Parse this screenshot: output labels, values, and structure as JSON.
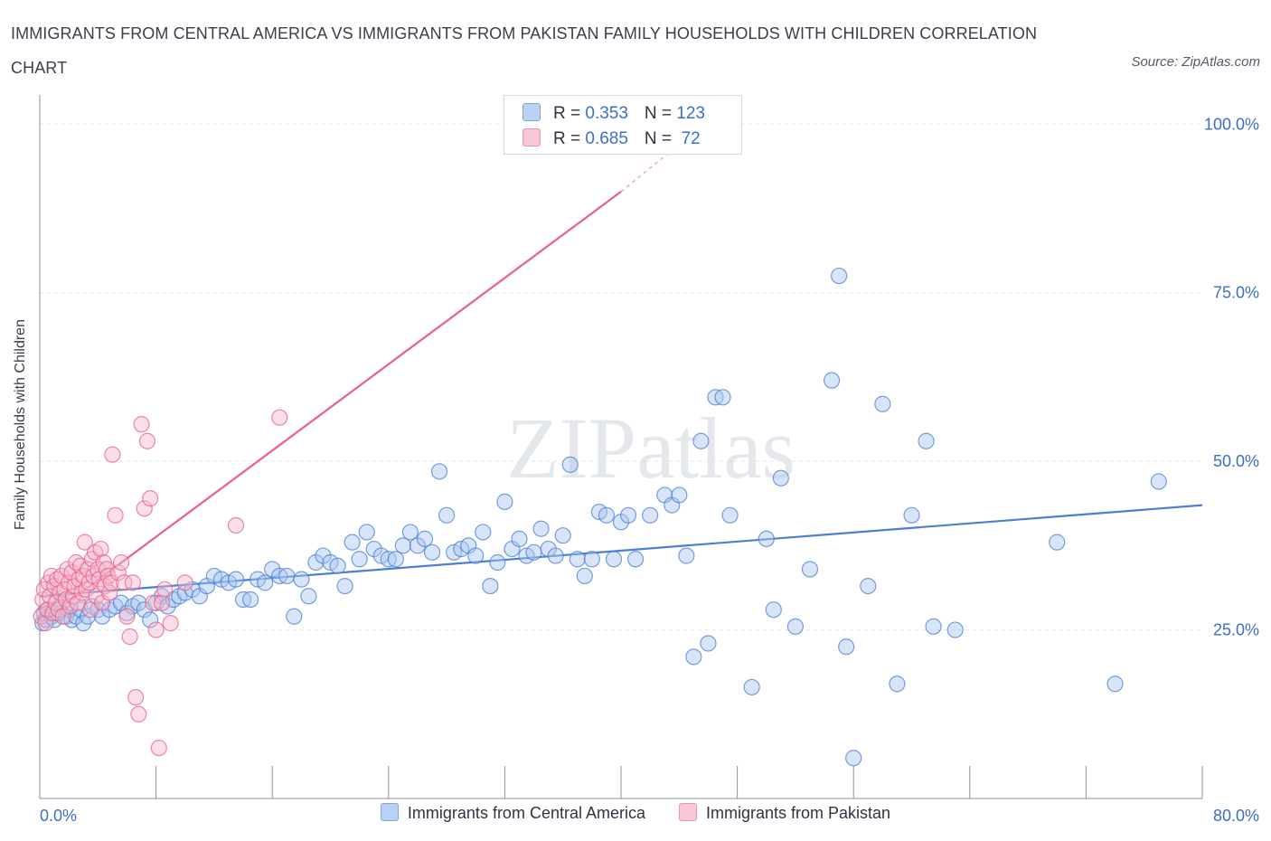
{
  "chart_data": {
    "type": "scatter",
    "title": "IMMIGRANTS FROM CENTRAL AMERICA VS IMMIGRANTS FROM PAKISTAN FAMILY HOUSEHOLDS WITH CHILDREN CORRELATION CHART",
    "source": "Source: ZipAtlas.com",
    "ylabel": "Family Households with Children",
    "xlabel": "",
    "xlim": [
      0,
      80
    ],
    "ylim": [
      0,
      105
    ],
    "x_tick_labels": {
      "min": "0.0%",
      "max": "80.0%"
    },
    "y_ticks": [
      {
        "value": 25,
        "label": "25.0%"
      },
      {
        "value": 50,
        "label": "50.0%"
      },
      {
        "value": 75,
        "label": "75.0%"
      },
      {
        "value": 100,
        "label": "100.0%"
      }
    ],
    "watermark": "ZIPatlas",
    "legend_top": [
      {
        "r_label": "R = ",
        "r_value": "0.353",
        "n_label": "N = ",
        "n_value": "123"
      },
      {
        "r_label": "R = ",
        "r_value": "0.685",
        "n_label": "N = ",
        "n_value": " 72"
      }
    ],
    "series": [
      {
        "name": "Immigrants from Central America",
        "color": "#4a7fd4",
        "fill": "#a9c6ef",
        "trend": {
          "x": [
            0,
            80
          ],
          "y": [
            30.0,
            43.5
          ]
        },
        "points": [
          [
            0.2,
            26
          ],
          [
            0.3,
            27.5
          ],
          [
            0.4,
            26.5
          ],
          [
            0.6,
            28
          ],
          [
            0.8,
            27
          ],
          [
            1.0,
            26.5
          ],
          [
            1.2,
            27.5
          ],
          [
            1.5,
            29
          ],
          [
            1.8,
            27
          ],
          [
            2,
            28
          ],
          [
            2.2,
            26.5
          ],
          [
            2.5,
            27
          ],
          [
            2.8,
            28
          ],
          [
            3,
            26
          ],
          [
            3.3,
            27
          ],
          [
            3.6,
            28.5
          ],
          [
            4,
            28
          ],
          [
            4.3,
            27
          ],
          [
            4.8,
            28
          ],
          [
            5.2,
            28.5
          ],
          [
            5.6,
            29
          ],
          [
            6,
            27.5
          ],
          [
            6.4,
            28.5
          ],
          [
            6.8,
            29
          ],
          [
            7.2,
            28
          ],
          [
            7.6,
            26.5
          ],
          [
            8,
            29
          ],
          [
            8.4,
            30
          ],
          [
            8.8,
            28.5
          ],
          [
            9.2,
            29.5
          ],
          [
            9.6,
            30
          ],
          [
            10,
            30.5
          ],
          [
            10.5,
            31
          ],
          [
            11,
            30
          ],
          [
            11.5,
            31.5
          ],
          [
            12,
            33
          ],
          [
            12.5,
            32.5
          ],
          [
            13,
            32
          ],
          [
            13.5,
            32.5
          ],
          [
            14,
            29.5
          ],
          [
            14.5,
            29.5
          ],
          [
            15,
            32.5
          ],
          [
            15.5,
            32
          ],
          [
            16,
            34
          ],
          [
            16.5,
            33
          ],
          [
            17,
            33
          ],
          [
            17.5,
            27
          ],
          [
            18,
            32.5
          ],
          [
            18.5,
            30
          ],
          [
            19,
            35
          ],
          [
            19.5,
            36
          ],
          [
            20,
            35
          ],
          [
            20.5,
            34.5
          ],
          [
            21,
            31.5
          ],
          [
            21.5,
            38
          ],
          [
            22,
            35.5
          ],
          [
            22.5,
            39.5
          ],
          [
            23,
            37
          ],
          [
            23.5,
            36
          ],
          [
            24,
            35.5
          ],
          [
            24.5,
            35.5
          ],
          [
            25,
            37.5
          ],
          [
            25.5,
            39.5
          ],
          [
            26,
            37.5
          ],
          [
            26.5,
            38.5
          ],
          [
            27,
            36.5
          ],
          [
            27.5,
            48.5
          ],
          [
            28,
            42
          ],
          [
            28.5,
            36.5
          ],
          [
            29,
            37
          ],
          [
            29.5,
            37.5
          ],
          [
            30,
            36
          ],
          [
            30.5,
            39.5
          ],
          [
            31,
            31.5
          ],
          [
            31.5,
            35
          ],
          [
            32,
            44
          ],
          [
            32.5,
            37
          ],
          [
            33,
            38.5
          ],
          [
            33.5,
            36
          ],
          [
            34,
            36.5
          ],
          [
            34.5,
            40
          ],
          [
            35,
            37
          ],
          [
            35.5,
            36
          ],
          [
            36,
            39
          ],
          [
            36.5,
            49.5
          ],
          [
            37,
            35.5
          ],
          [
            37.5,
            33
          ],
          [
            38,
            35.5
          ],
          [
            38.5,
            42.5
          ],
          [
            39,
            42
          ],
          [
            39.5,
            35.5
          ],
          [
            40,
            41
          ],
          [
            40.5,
            42
          ],
          [
            41,
            35.5
          ],
          [
            42,
            42
          ],
          [
            43,
            45
          ],
          [
            43.5,
            43.5
          ],
          [
            44,
            45
          ],
          [
            44.5,
            36
          ],
          [
            45,
            21
          ],
          [
            45.5,
            53
          ],
          [
            46,
            23
          ],
          [
            46.5,
            59.5
          ],
          [
            47,
            59.5
          ],
          [
            47.5,
            42
          ],
          [
            49,
            16.5
          ],
          [
            50,
            38.5
          ],
          [
            50.5,
            28
          ],
          [
            51,
            47.5
          ],
          [
            52,
            25.5
          ],
          [
            53,
            34
          ],
          [
            54.5,
            62
          ],
          [
            55,
            77.5
          ],
          [
            55.5,
            22.5
          ],
          [
            56,
            6
          ],
          [
            57,
            31.5
          ],
          [
            58,
            58.5
          ],
          [
            59,
            17
          ],
          [
            60,
            42
          ],
          [
            61,
            53
          ],
          [
            61.5,
            25.5
          ],
          [
            63,
            25
          ],
          [
            70,
            38
          ],
          [
            74,
            17
          ],
          [
            77,
            47
          ]
        ]
      },
      {
        "name": "Immigrants from Pakistan",
        "color": "#e8608a",
        "fill": "#f5b9cc",
        "trend": {
          "x": [
            0,
            40
          ],
          "y": [
            26.0,
            90.0
          ]
        },
        "trend_dashed": {
          "x": [
            40,
            44
          ],
          "y": [
            90.0,
            97.0
          ]
        },
        "points": [
          [
            0.1,
            27
          ],
          [
            0.2,
            29.5
          ],
          [
            0.3,
            31
          ],
          [
            0.4,
            26
          ],
          [
            0.5,
            28
          ],
          [
            0.6,
            32
          ],
          [
            0.7,
            30
          ],
          [
            0.8,
            33
          ],
          [
            0.9,
            27.5
          ],
          [
            1.0,
            31.5
          ],
          [
            1.1,
            29
          ],
          [
            1.2,
            32.5
          ],
          [
            1.3,
            28
          ],
          [
            1.4,
            30.5
          ],
          [
            1.5,
            33
          ],
          [
            1.6,
            27
          ],
          [
            1.7,
            31
          ],
          [
            1.8,
            29.5
          ],
          [
            1.9,
            34
          ],
          [
            2.0,
            32
          ],
          [
            2.1,
            28.5
          ],
          [
            2.2,
            33.5
          ],
          [
            2.3,
            30
          ],
          [
            2.4,
            31.5
          ],
          [
            2.5,
            35
          ],
          [
            2.6,
            29
          ],
          [
            2.7,
            32.5
          ],
          [
            2.8,
            34.5
          ],
          [
            2.9,
            30.5
          ],
          [
            3.0,
            33
          ],
          [
            3.1,
            38
          ],
          [
            3.2,
            31
          ],
          [
            3.3,
            34
          ],
          [
            3.4,
            32
          ],
          [
            3.5,
            28
          ],
          [
            3.6,
            35.5
          ],
          [
            3.7,
            33
          ],
          [
            3.8,
            36.5
          ],
          [
            3.9,
            30
          ],
          [
            4.0,
            34
          ],
          [
            4.1,
            32.5
          ],
          [
            4.2,
            37
          ],
          [
            4.3,
            29
          ],
          [
            4.4,
            35
          ],
          [
            4.5,
            31.5
          ],
          [
            4.6,
            34
          ],
          [
            4.7,
            33
          ],
          [
            4.8,
            30.5
          ],
          [
            4.9,
            32
          ],
          [
            5.0,
            51
          ],
          [
            5.2,
            42
          ],
          [
            5.4,
            33.5
          ],
          [
            5.6,
            35
          ],
          [
            5.8,
            32
          ],
          [
            6.0,
            27
          ],
          [
            6.2,
            24
          ],
          [
            6.4,
            32
          ],
          [
            6.6,
            15
          ],
          [
            6.8,
            12.5
          ],
          [
            7.0,
            55.5
          ],
          [
            7.2,
            43
          ],
          [
            7.4,
            53
          ],
          [
            7.6,
            44.5
          ],
          [
            7.8,
            29
          ],
          [
            8.0,
            25
          ],
          [
            8.2,
            7.5
          ],
          [
            8.4,
            29
          ],
          [
            8.6,
            31
          ],
          [
            9.0,
            26
          ],
          [
            10.0,
            32
          ],
          [
            13.5,
            40.5
          ],
          [
            16.5,
            56.5
          ]
        ]
      }
    ]
  }
}
